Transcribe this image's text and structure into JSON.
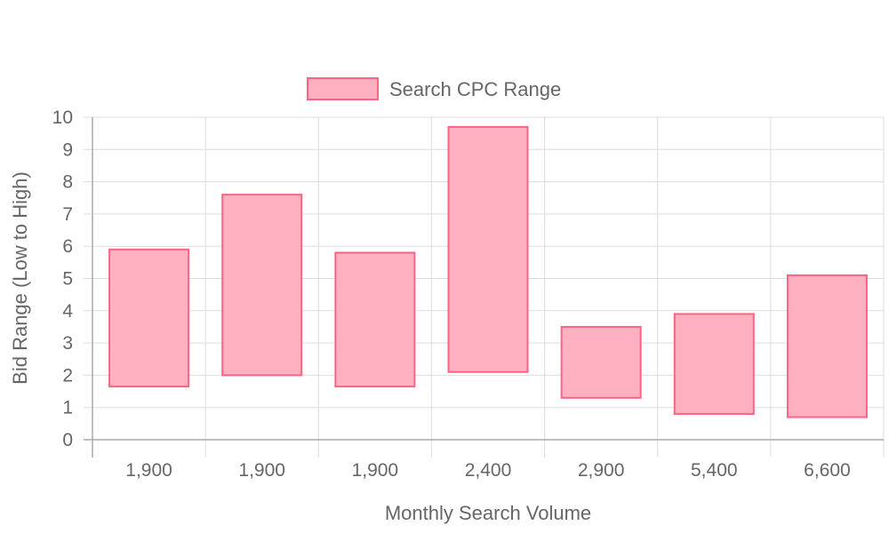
{
  "chart_data": {
    "type": "bar",
    "subtype": "floating-range",
    "categories": [
      "1,900",
      "1,900",
      "1,900",
      "2,400",
      "2,900",
      "5,400",
      "6,600"
    ],
    "series": [
      {
        "name": "Search CPC Range",
        "ranges": [
          [
            1.65,
            5.9
          ],
          [
            2.0,
            7.6
          ],
          [
            1.65,
            5.8
          ],
          [
            2.1,
            9.7
          ],
          [
            1.3,
            3.5
          ],
          [
            0.8,
            3.9
          ],
          [
            0.7,
            5.1
          ]
        ],
        "fill_color": "#ffb1c1",
        "border_color": "#ff6384"
      }
    ],
    "xlabel": "Monthly Search Volume",
    "ylabel": "Bid Range (Low to High)",
    "ylim": [
      0,
      10
    ],
    "yticks": [
      "0",
      "1",
      "2",
      "3",
      "4",
      "5",
      "6",
      "7",
      "8",
      "9",
      "10"
    ],
    "grid": true,
    "legend_position": "top"
  }
}
